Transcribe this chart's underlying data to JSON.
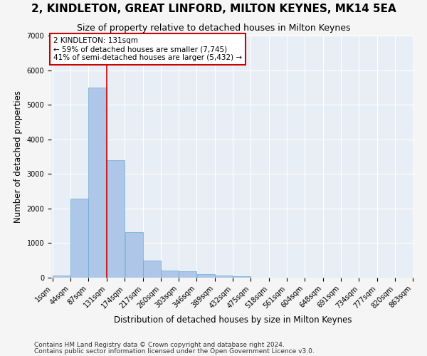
{
  "title": "2, KINDLETON, GREAT LINFORD, MILTON KEYNES, MK14 5EA",
  "subtitle": "Size of property relative to detached houses in Milton Keynes",
  "xlabel": "Distribution of detached houses by size in Milton Keynes",
  "ylabel": "Number of detached properties",
  "footnote1": "Contains HM Land Registry data © Crown copyright and database right 2024.",
  "footnote2": "Contains public sector information licensed under the Open Government Licence v3.0.",
  "bar_color": "#aec6e8",
  "bar_edge_color": "#6aaad4",
  "bg_color": "#e8eef5",
  "grid_color": "#ffffff",
  "annotation_line_color": "#cc0000",
  "annotation_box_color": "#cc0000",
  "annotation_text_color": "#000000",
  "annotation_bg": "#ffffff",
  "property_size": 131,
  "annotation_label": "2 KINDLETON: 131sqm",
  "annotation_line1": "← 59% of detached houses are smaller (7,745)",
  "annotation_line2": "41% of semi-detached houses are larger (5,432) →",
  "bin_edges": [
    1,
    44,
    87,
    131,
    174,
    217,
    260,
    303,
    346,
    389,
    432,
    475,
    518,
    561,
    604,
    648,
    691,
    734,
    777,
    820,
    863
  ],
  "bar_heights": [
    70,
    2280,
    5490,
    3400,
    1310,
    490,
    205,
    180,
    95,
    60,
    45,
    0,
    0,
    0,
    0,
    0,
    0,
    0,
    0,
    0
  ],
  "ylim": [
    0,
    7000
  ],
  "yticks": [
    0,
    1000,
    2000,
    3000,
    4000,
    5000,
    6000,
    7000
  ],
  "title_fontsize": 11,
  "subtitle_fontsize": 9,
  "label_fontsize": 8.5,
  "tick_fontsize": 7,
  "footnote_fontsize": 6.5,
  "fig_bg": "#f5f5f5"
}
